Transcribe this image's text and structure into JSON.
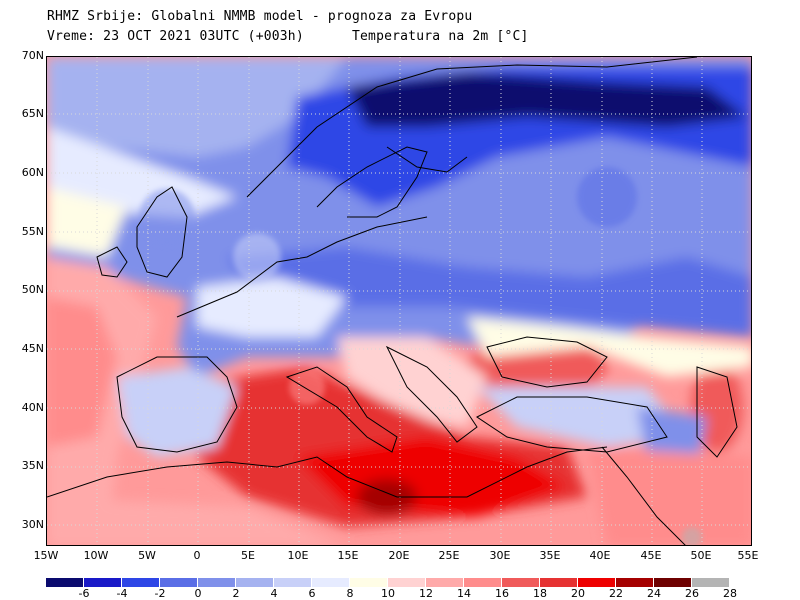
{
  "header": {
    "line1": "RHMZ Srbije: Globalni NMMB model - prognoza za Evropu",
    "line2": "Vreme: 23 OCT 2021 03UTC (+003h)",
    "line3": "Temperatura na 2m [°C]"
  },
  "lat_labels": [
    "70N",
    "65N",
    "60N",
    "55N",
    "50N",
    "45N",
    "40N",
    "35N",
    "30N"
  ],
  "lon_labels": [
    "15W",
    "10W",
    "5W",
    "0",
    "5E",
    "10E",
    "15E",
    "20E",
    "25E",
    "30E",
    "35E",
    "40E",
    "45E",
    "50E",
    "55E"
  ],
  "colorbar": {
    "colors": [
      "#0a0a6e",
      "#1919c8",
      "#2e46e6",
      "#5a6ee6",
      "#7f90ea",
      "#a5b2f0",
      "#c8d0f8",
      "#e6ebff",
      "#fffde6",
      "#ffd2d2",
      "#ffaaaa",
      "#ff8c8c",
      "#f05a5a",
      "#e63232",
      "#ee0000",
      "#a50000",
      "#6e0000",
      "#b4b4b4"
    ],
    "labels": [
      "-6",
      "-4",
      "-2",
      "0",
      "2",
      "4",
      "6",
      "8",
      "10",
      "12",
      "14",
      "16",
      "18",
      "20",
      "22",
      "24",
      "26",
      "28"
    ]
  }
}
